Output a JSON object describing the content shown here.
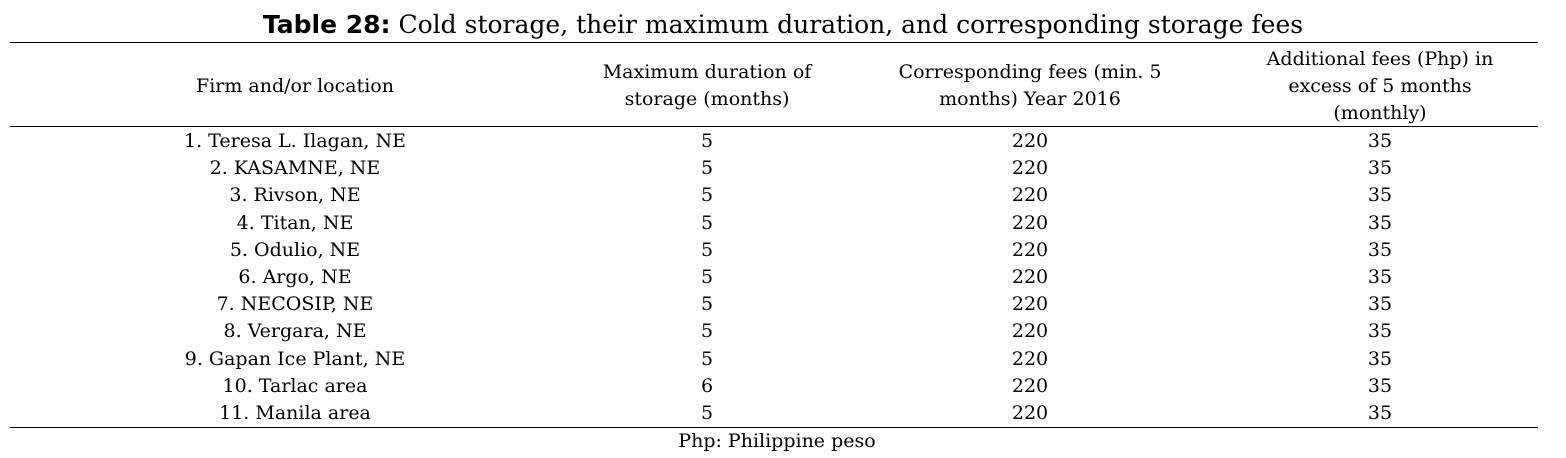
{
  "header": {
    "label": "Table 28:",
    "title": "Cold storage, their maximum duration, and corresponding storage fees"
  },
  "table": {
    "columns": [
      [
        "Firm and/or location"
      ],
      [
        "Maximum duration of",
        "storage (months)"
      ],
      [
        "Corresponding fees (min. 5",
        "months) Year 2016"
      ],
      [
        "Additional fees (Php) in",
        "excess of 5 months",
        "(monthly)"
      ]
    ],
    "rows": [
      [
        "1. Teresa L. Ilagan, NE",
        5,
        220,
        35
      ],
      [
        "2. KASAMNE, NE",
        5,
        220,
        35
      ],
      [
        "3. Rivson, NE",
        5,
        220,
        35
      ],
      [
        "4. Titan, NE",
        5,
        220,
        35
      ],
      [
        "5. Odulio, NE",
        5,
        220,
        35
      ],
      [
        "6. Argo, NE",
        5,
        220,
        35
      ],
      [
        "7. NECOSIP, NE",
        5,
        220,
        35
      ],
      [
        "8. Vergara, NE",
        5,
        220,
        35
      ],
      [
        "9. Gapan Ice Plant, NE",
        5,
        220,
        35
      ],
      [
        "10. Tarlac area",
        6,
        220,
        35
      ],
      [
        "11. Manila area",
        5,
        220,
        35
      ]
    ]
  },
  "footnote": "Php: Philippine peso"
}
